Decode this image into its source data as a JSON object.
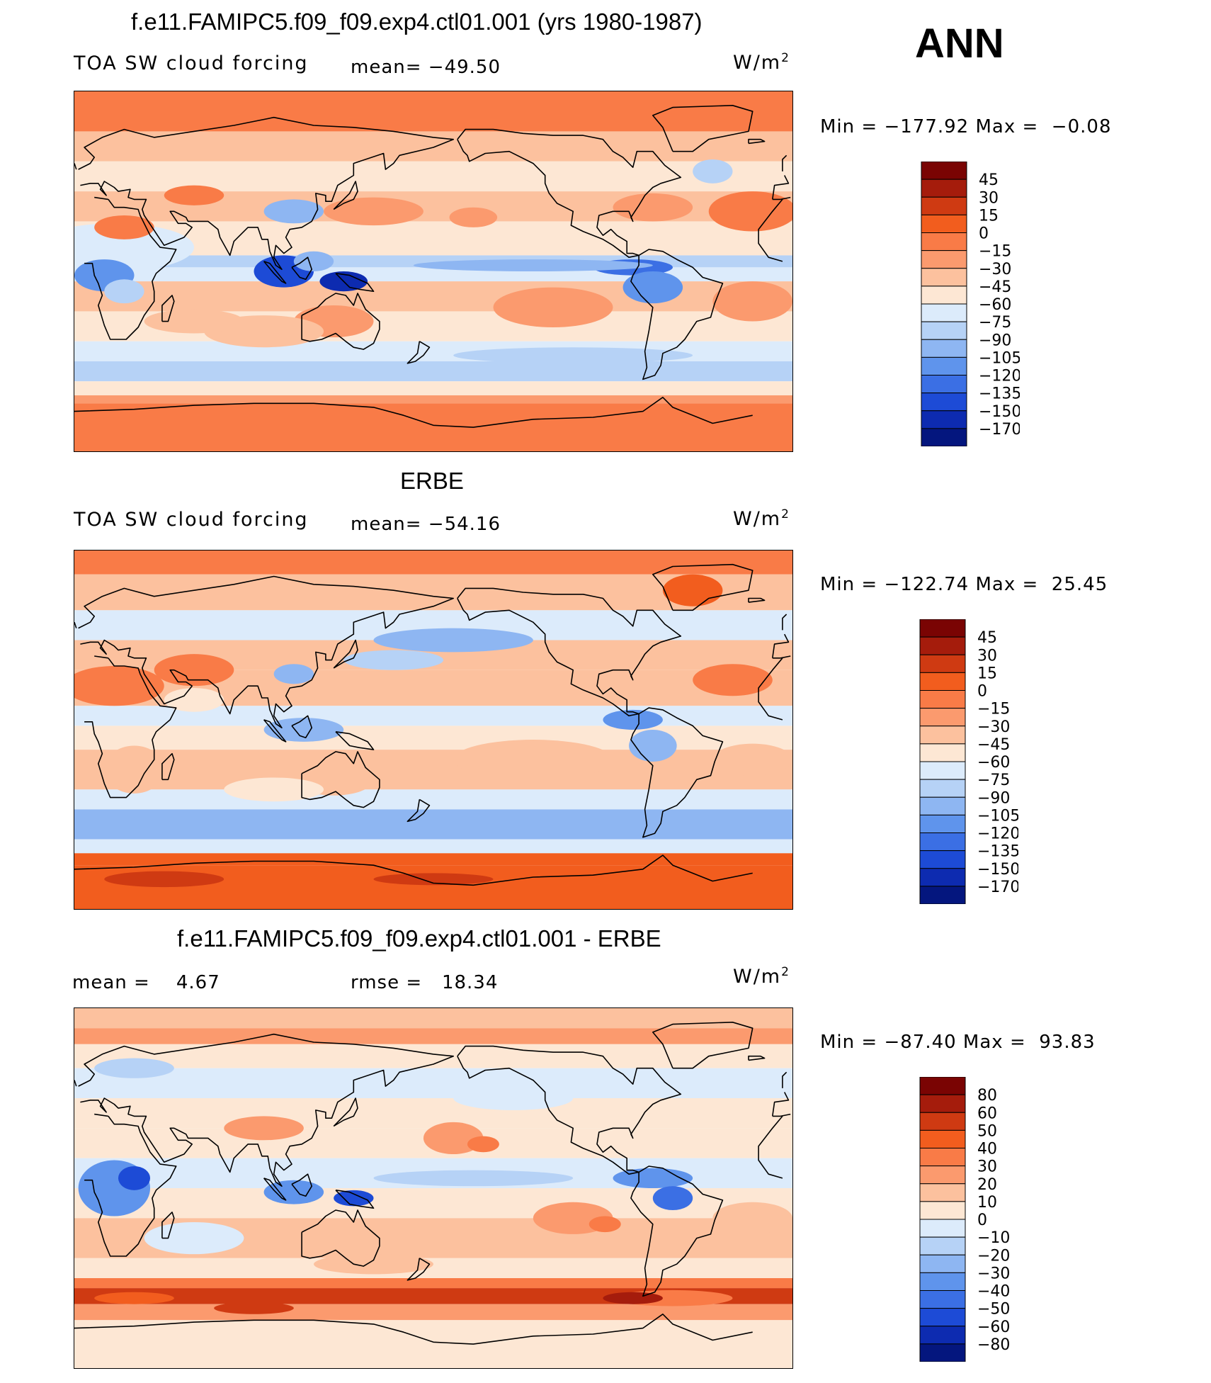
{
  "page": {
    "season": "ANN"
  },
  "colors": {
    "scale": [
      "#7a0403",
      "#a51c0c",
      "#cf3a12",
      "#f25d1e",
      "#f97b47",
      "#fb9a6e",
      "#fcc19e",
      "#fde7d4",
      "#dcebfb",
      "#b6d2f6",
      "#8eb6f2",
      "#5f94ec",
      "#3b6fe4",
      "#1d4bd6",
      "#0d2bb0",
      "#04167e"
    ],
    "coast": "#000000"
  },
  "chart_data": [
    {
      "type": "heatmap",
      "title": "f.e11.FAMIPC5.f09_f09.exp4.ctl01.001 (yrs 1980-1987)",
      "left_label": "TOA SW cloud forcing",
      "mid_label": "mean= −49.50",
      "units": "W/m",
      "units_sup": "2",
      "minmax": "Min = −177.92 Max =  −0.08",
      "mean": -49.5,
      "min": -177.92,
      "max": -0.08,
      "colorbar_levels": [
        "45",
        "30",
        "15",
        "0",
        "−15",
        "−30",
        "−45",
        "−60",
        "−75",
        "−90",
        "−105",
        "−120",
        "−135",
        "−150",
        "−170"
      ]
    },
    {
      "type": "heatmap",
      "title": "ERBE",
      "left_label": "TOA SW cloud forcing",
      "mid_label": "mean= −54.16",
      "units": "W/m",
      "units_sup": "2",
      "minmax": "Min = −122.74 Max =  25.45",
      "mean": -54.16,
      "min": -122.74,
      "max": 25.45,
      "colorbar_levels": [
        "45",
        "30",
        "15",
        "0",
        "−15",
        "−30",
        "−45",
        "−60",
        "−75",
        "−90",
        "−105",
        "−120",
        "−135",
        "−150",
        "−170"
      ]
    },
    {
      "type": "heatmap",
      "title": "f.e11.FAMIPC5.f09_f09.exp4.ctl01.001 - ERBE",
      "left_label": "mean =    4.67",
      "mid_label": "rmse =   18.34",
      "units": "W/m",
      "units_sup": "2",
      "minmax": "Min = −87.40 Max =  93.83",
      "mean": 4.67,
      "rmse": 18.34,
      "min": -87.4,
      "max": 93.83,
      "colorbar_levels": [
        "80",
        "60",
        "50",
        "40",
        "30",
        "20",
        "10",
        "0",
        "−10",
        "−20",
        "−30",
        "−40",
        "−50",
        "−60",
        "−80"
      ]
    }
  ]
}
